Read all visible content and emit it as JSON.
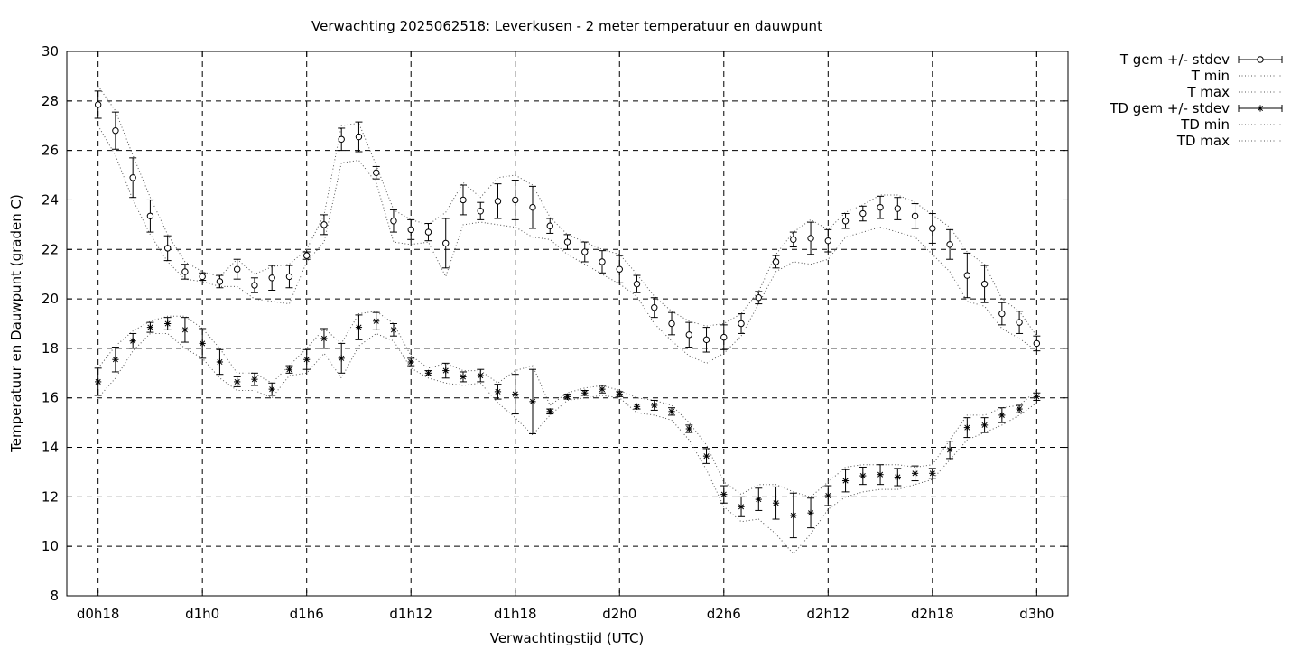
{
  "chart_data": {
    "type": "line",
    "title": "Verwachting 2025062518: Leverkusen - 2 meter temperatuur en dauwpunt",
    "xlabel": "Verwachtingstijd (UTC)",
    "ylabel": "Temperatuur en Dauwpunt (graden C)",
    "x_tick_labels": [
      "d0h18",
      "d1h0",
      "d1h6",
      "d1h12",
      "d1h18",
      "d2h0",
      "d2h6",
      "d2h12",
      "d2h18",
      "d3h0"
    ],
    "x_tick_hours": [
      18,
      24,
      30,
      36,
      42,
      48,
      54,
      60,
      66,
      72
    ],
    "xlim_hours": [
      16.2,
      73.8
    ],
    "ylim": [
      8,
      30
    ],
    "y_ticks": [
      8,
      10,
      12,
      14,
      16,
      18,
      20,
      22,
      24,
      26,
      28,
      30
    ],
    "grid": true,
    "legend_position": "top-right, outside plot",
    "legend": [
      "T gem +/- stdev",
      "T min",
      "T max",
      "TD gem +/- stdev",
      "TD min",
      "TD max"
    ],
    "x_hours": [
      18,
      19,
      20,
      21,
      22,
      23,
      24,
      25,
      26,
      27,
      28,
      29,
      30,
      31,
      32,
      33,
      34,
      35,
      36,
      37,
      38,
      39,
      40,
      41,
      42,
      43,
      44,
      45,
      46,
      47,
      48,
      49,
      50,
      51,
      52,
      53,
      54,
      55,
      56,
      57,
      58,
      59,
      60,
      61,
      62,
      63,
      64,
      65,
      66,
      67,
      68,
      69,
      70,
      71,
      72
    ],
    "series": [
      {
        "name": "T gem +/- stdev",
        "marker": "circle",
        "mean": [
          27.85,
          26.8,
          24.9,
          23.35,
          22.05,
          21.1,
          20.9,
          20.7,
          21.2,
          20.55,
          20.85,
          20.9,
          21.75,
          23.0,
          26.45,
          26.55,
          25.1,
          23.15,
          22.8,
          22.7,
          22.25,
          24.0,
          23.55,
          23.95,
          24.0,
          23.7,
          22.95,
          22.3,
          21.9,
          21.5,
          21.2,
          20.6,
          19.65,
          19.0,
          18.55,
          18.35,
          18.45,
          19.0,
          20.05,
          21.5,
          22.4,
          22.45,
          22.35,
          23.15,
          23.45,
          23.7,
          23.65,
          23.35,
          22.85,
          22.2,
          20.95,
          20.6,
          19.4,
          19.05,
          18.2
        ],
        "stdev": [
          0.55,
          0.75,
          0.8,
          0.65,
          0.5,
          0.3,
          0.15,
          0.25,
          0.4,
          0.3,
          0.5,
          0.45,
          0.15,
          0.4,
          0.45,
          0.6,
          0.25,
          0.45,
          0.4,
          0.35,
          1.0,
          0.6,
          0.35,
          0.7,
          0.8,
          0.85,
          0.3,
          0.3,
          0.4,
          0.45,
          0.55,
          0.35,
          0.4,
          0.45,
          0.5,
          0.5,
          0.5,
          0.4,
          0.25,
          0.25,
          0.3,
          0.65,
          0.45,
          0.3,
          0.3,
          0.45,
          0.45,
          0.5,
          0.6,
          0.6,
          0.9,
          0.75,
          0.45,
          0.45,
          0.3
        ]
      },
      {
        "name": "T min",
        "line": "dotted",
        "values": [
          27.0,
          25.8,
          24.0,
          22.6,
          21.5,
          20.8,
          20.7,
          20.5,
          20.5,
          20.0,
          19.9,
          19.8,
          21.5,
          22.3,
          25.5,
          25.6,
          24.7,
          22.3,
          22.2,
          22.3,
          20.9,
          23.0,
          23.1,
          23.0,
          22.9,
          22.5,
          22.4,
          21.8,
          21.4,
          21.0,
          20.6,
          20.1,
          19.0,
          18.3,
          17.7,
          17.4,
          17.8,
          18.5,
          19.8,
          21.1,
          21.5,
          21.4,
          21.6,
          22.5,
          22.7,
          22.9,
          22.7,
          22.5,
          21.8,
          21.1,
          19.9,
          19.7,
          18.8,
          18.4,
          17.9
        ]
      },
      {
        "name": "T max",
        "line": "dotted",
        "values": [
          28.6,
          27.6,
          25.8,
          24.1,
          22.6,
          21.5,
          21.1,
          20.9,
          21.6,
          21.0,
          21.3,
          21.4,
          22.0,
          23.4,
          27.0,
          27.1,
          25.4,
          23.6,
          23.2,
          23.0,
          23.5,
          24.7,
          24.1,
          24.9,
          25.0,
          24.6,
          23.3,
          22.6,
          22.3,
          22.0,
          21.8,
          21.0,
          20.1,
          19.5,
          19.1,
          18.9,
          19.0,
          19.4,
          20.3,
          21.8,
          22.7,
          23.2,
          22.8,
          23.5,
          23.8,
          24.2,
          24.2,
          23.9,
          23.4,
          22.9,
          21.9,
          21.4,
          20.0,
          19.5,
          18.5
        ]
      },
      {
        "name": "TD gem +/- stdev",
        "marker": "star",
        "mean": [
          16.65,
          17.55,
          18.3,
          18.85,
          19.0,
          18.75,
          18.2,
          17.45,
          16.65,
          16.75,
          16.35,
          17.15,
          17.55,
          18.4,
          17.6,
          18.85,
          19.1,
          18.75,
          17.45,
          17.0,
          17.1,
          16.85,
          16.9,
          16.25,
          16.15,
          15.85,
          15.45,
          16.05,
          16.2,
          16.35,
          16.15,
          15.65,
          15.7,
          15.45,
          14.75,
          13.65,
          12.1,
          11.6,
          11.9,
          11.75,
          11.25,
          11.35,
          12.05,
          12.65,
          12.85,
          12.9,
          12.8,
          12.95,
          12.95,
          13.9,
          14.8,
          14.9,
          15.3,
          15.55,
          16.05
        ],
        "stdev": [
          0.55,
          0.5,
          0.3,
          0.2,
          0.25,
          0.5,
          0.6,
          0.5,
          0.2,
          0.25,
          0.25,
          0.15,
          0.4,
          0.4,
          0.6,
          0.5,
          0.35,
          0.25,
          0.15,
          0.1,
          0.3,
          0.2,
          0.25,
          0.3,
          0.8,
          1.3,
          0.1,
          0.1,
          0.1,
          0.15,
          0.1,
          0.1,
          0.2,
          0.15,
          0.15,
          0.3,
          0.35,
          0.4,
          0.45,
          0.65,
          0.9,
          0.6,
          0.4,
          0.45,
          0.35,
          0.4,
          0.35,
          0.3,
          0.2,
          0.35,
          0.4,
          0.3,
          0.3,
          0.15,
          0.15
        ]
      },
      {
        "name": "TD min",
        "line": "dotted",
        "values": [
          16.0,
          16.8,
          17.9,
          18.6,
          18.6,
          18.0,
          17.6,
          16.8,
          16.3,
          16.3,
          16.0,
          16.9,
          17.0,
          17.8,
          16.8,
          18.1,
          18.6,
          18.3,
          17.2,
          16.8,
          16.6,
          16.5,
          16.6,
          15.8,
          15.2,
          14.5,
          15.3,
          15.9,
          16.0,
          16.1,
          16.0,
          15.4,
          15.3,
          15.1,
          14.3,
          13.1,
          11.6,
          11.0,
          11.1,
          10.5,
          9.7,
          10.5,
          11.5,
          12.0,
          12.2,
          12.3,
          12.3,
          12.5,
          12.7,
          13.5,
          14.3,
          14.6,
          14.9,
          15.3,
          15.8
        ]
      },
      {
        "name": "TD max",
        "line": "dotted",
        "values": [
          17.2,
          18.1,
          18.7,
          19.1,
          19.3,
          19.3,
          18.8,
          18.0,
          17.0,
          17.0,
          16.6,
          17.3,
          18.0,
          18.8,
          18.2,
          19.4,
          19.5,
          19.0,
          17.7,
          17.2,
          17.4,
          17.1,
          17.1,
          16.6,
          17.1,
          17.3,
          15.7,
          16.2,
          16.4,
          16.5,
          16.3,
          16.0,
          15.9,
          15.7,
          15.0,
          14.1,
          12.6,
          12.1,
          12.5,
          12.5,
          12.2,
          12.0,
          12.6,
          13.2,
          13.3,
          13.3,
          13.3,
          13.2,
          13.3,
          14.3,
          15.3,
          15.3,
          15.6,
          15.7,
          16.3
        ]
      }
    ]
  }
}
